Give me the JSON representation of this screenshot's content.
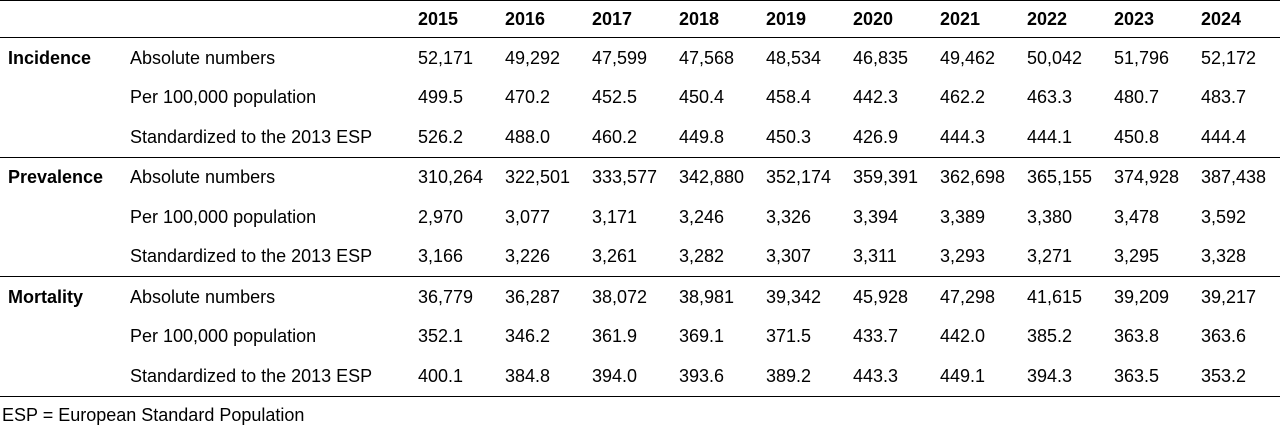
{
  "header": {
    "group_label": "",
    "measure_label": "",
    "years": [
      "2015",
      "2016",
      "2017",
      "2018",
      "2019",
      "2020",
      "2021",
      "2022",
      "2023",
      "2024"
    ]
  },
  "sections": [
    {
      "name": "Incidence",
      "rows": [
        {
          "measure": "Absolute numbers",
          "values": [
            "52,171",
            "49,292",
            "47,599",
            "47,568",
            "48,534",
            "46,835",
            "49,462",
            "50,042",
            "51,796",
            "52,172"
          ]
        },
        {
          "measure": "Per 100,000 population",
          "values": [
            "499.5",
            "470.2",
            "452.5",
            "450.4",
            "458.4",
            "442.3",
            "462.2",
            "463.3",
            "480.7",
            "483.7"
          ]
        },
        {
          "measure": "Standardized to the 2013 ESP",
          "values": [
            "526.2",
            "488.0",
            "460.2",
            "449.8",
            "450.3",
            "426.9",
            "444.3",
            "444.1",
            "450.8",
            "444.4"
          ]
        }
      ]
    },
    {
      "name": "Prevalence",
      "rows": [
        {
          "measure": "Absolute numbers",
          "values": [
            "310,264",
            "322,501",
            "333,577",
            "342,880",
            "352,174",
            "359,391",
            "362,698",
            "365,155",
            "374,928",
            "387,438"
          ]
        },
        {
          "measure": "Per 100,000 population",
          "values": [
            "2,970",
            "3,077",
            "3,171",
            "3,246",
            "3,326",
            "3,394",
            "3,389",
            "3,380",
            "3,478",
            "3,592"
          ]
        },
        {
          "measure": "Standardized to the 2013 ESP",
          "values": [
            "3,166",
            "3,226",
            "3,261",
            "3,282",
            "3,307",
            "3,311",
            "3,293",
            "3,271",
            "3,295",
            "3,328"
          ]
        }
      ]
    },
    {
      "name": "Mortality",
      "rows": [
        {
          "measure": "Absolute numbers",
          "values": [
            "36,779",
            "36,287",
            "38,072",
            "38,981",
            "39,342",
            "45,928",
            "47,298",
            "41,615",
            "39,209",
            "39,217"
          ]
        },
        {
          "measure": "Per 100,000 population",
          "values": [
            "352.1",
            "346.2",
            "361.9",
            "369.1",
            "371.5",
            "433.7",
            "442.0",
            "385.2",
            "363.8",
            "363.6"
          ]
        },
        {
          "measure": "Standardized to the 2013 ESP",
          "values": [
            "400.1",
            "384.8",
            "394.0",
            "393.6",
            "389.2",
            "443.3",
            "449.1",
            "394.3",
            "363.5",
            "353.2"
          ]
        }
      ]
    }
  ],
  "footnote": "ESP = European Standard Population"
}
